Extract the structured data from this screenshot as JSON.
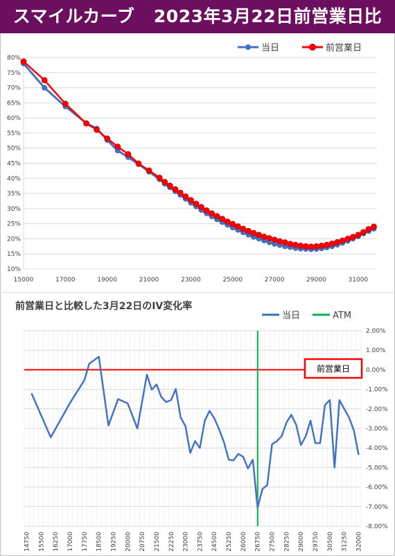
{
  "banner": {
    "title": "スマイルカーブ   2023年3月22日前営業日比"
  },
  "colors": {
    "banner": "#6b0f5e",
    "blue": "#4472c4",
    "red": "#ff0000",
    "green": "#00b050",
    "legend_blue": "#2e75b6"
  },
  "chart_data": [
    {
      "type": "line",
      "title": "",
      "legend_position": "top-right",
      "grid": true,
      "xlim": [
        15000,
        31900
      ],
      "ylim": [
        0.1,
        0.8
      ],
      "x_ticks": [
        15000,
        17000,
        19000,
        21000,
        23000,
        25000,
        27000,
        29000,
        31000
      ],
      "x_tick_labels": [
        "15000",
        "17000",
        "19000",
        "21000",
        "23000",
        "25000",
        "27000",
        "29000",
        "31000"
      ],
      "y_ticks": [
        0.1,
        0.15,
        0.2,
        0.25,
        0.3,
        0.35,
        0.4,
        0.45,
        0.5,
        0.55,
        0.6,
        0.65,
        0.7,
        0.75,
        0.8
      ],
      "y_tick_labels": [
        "10%",
        "15%",
        "20%",
        "25%",
        "30%",
        "35%",
        "40%",
        "45%",
        "50%",
        "55%",
        "60%",
        "65%",
        "70%",
        "75%",
        "80%"
      ],
      "series": [
        {
          "name": "当日",
          "color": "#4472c4",
          "x": [
            15000,
            16000,
            17000,
            18000,
            18500,
            19000,
            19500,
            20000,
            20500,
            21000,
            21500,
            21750,
            22000,
            22250,
            22500,
            22750,
            23000,
            23250,
            23500,
            23750,
            24000,
            24250,
            24500,
            24750,
            25000,
            25250,
            25500,
            25750,
            26000,
            26250,
            26500,
            26750,
            27000,
            27250,
            27500,
            27750,
            28000,
            28250,
            28500,
            28750,
            29000,
            29250,
            29500,
            29750,
            30000,
            30250,
            30500,
            30750,
            31000,
            31250,
            31500,
            31750
          ],
          "y": [
            0.78,
            0.7,
            0.638,
            0.583,
            0.565,
            0.527,
            0.492,
            0.47,
            0.447,
            0.422,
            0.397,
            0.382,
            0.37,
            0.357,
            0.345,
            0.332,
            0.319,
            0.307,
            0.295,
            0.284,
            0.274,
            0.264,
            0.255,
            0.246,
            0.237,
            0.229,
            0.221,
            0.213,
            0.206,
            0.2,
            0.194,
            0.188,
            0.183,
            0.179,
            0.175,
            0.172,
            0.169,
            0.167,
            0.166,
            0.165,
            0.166,
            0.168,
            0.171,
            0.175,
            0.18,
            0.186,
            0.193,
            0.2,
            0.208,
            0.217,
            0.225,
            0.233
          ]
        },
        {
          "name": "前営業日",
          "color": "#ff0000",
          "x": [
            15000,
            16000,
            17000,
            18000,
            18500,
            19000,
            19500,
            20000,
            20500,
            21000,
            21500,
            21750,
            22000,
            22250,
            22500,
            22750,
            23000,
            23250,
            23500,
            23750,
            24000,
            24250,
            24500,
            24750,
            25000,
            25250,
            25500,
            25750,
            26000,
            26250,
            26500,
            26750,
            27000,
            27250,
            27500,
            27750,
            28000,
            28250,
            28500,
            28750,
            29000,
            29250,
            29500,
            29750,
            30000,
            30250,
            30500,
            30750,
            31000,
            31250,
            31500,
            31750
          ],
          "y": [
            0.787,
            0.725,
            0.647,
            0.582,
            0.561,
            0.532,
            0.505,
            0.48,
            0.449,
            0.426,
            0.402,
            0.388,
            0.376,
            0.364,
            0.352,
            0.34,
            0.328,
            0.316,
            0.305,
            0.294,
            0.284,
            0.275,
            0.266,
            0.257,
            0.249,
            0.241,
            0.233,
            0.226,
            0.219,
            0.213,
            0.207,
            0.202,
            0.197,
            0.192,
            0.188,
            0.183,
            0.18,
            0.177,
            0.175,
            0.174,
            0.175,
            0.177,
            0.18,
            0.184,
            0.189,
            0.194,
            0.2,
            0.206,
            0.213,
            0.222,
            0.232,
            0.24
          ]
        }
      ]
    },
    {
      "type": "line",
      "title": "前営業日と比較した3月22日のIV変化率",
      "legend_position": "top-right",
      "grid": true,
      "ylim": [
        -0.08,
        0.02
      ],
      "y_ticks": [
        0.02,
        0.01,
        0.0,
        -0.01,
        -0.02,
        -0.03,
        -0.04,
        -0.05,
        -0.06,
        -0.07,
        -0.08
      ],
      "y_tick_labels": [
        "2.00%",
        "1.00%",
        "0.00%",
        "-1.00%",
        "-2.00%",
        "-3.00%",
        "-4.00%",
        "-5.00%",
        "-6.00%",
        "-7.00%",
        "-8.00%"
      ],
      "categories": [
        "14750",
        "15000",
        "15250",
        "15500",
        "15750",
        "16000",
        "16250",
        "16500",
        "16750",
        "17000",
        "17250",
        "17500",
        "17750",
        "18000",
        "18250",
        "18500",
        "18750",
        "19000",
        "19250",
        "19500",
        "19750",
        "20000",
        "20250",
        "20500",
        "20750",
        "21000",
        "21250",
        "21500",
        "21750",
        "22000",
        "22250",
        "22500",
        "22750",
        "23000",
        "23250",
        "23500",
        "23750",
        "24000",
        "24250",
        "24500",
        "24750",
        "25000",
        "25250",
        "25500",
        "25750",
        "26000",
        "26250",
        "26500",
        "26750",
        "27000",
        "27250",
        "27500",
        "27750",
        "28000",
        "28250",
        "28500",
        "28750",
        "29000",
        "29250",
        "29500",
        "29750",
        "30000",
        "30250",
        "30500",
        "30750",
        "31000",
        "31250",
        "31500",
        "31750",
        "32000"
      ],
      "x_tick_labels": [
        "14750",
        "15500",
        "16250",
        "17000",
        "17750",
        "18500",
        "19250",
        "20000",
        "20750",
        "21500",
        "22250",
        "23000",
        "23750",
        "24500",
        "25250",
        "26000",
        "26750",
        "27500",
        "28250",
        "29000",
        "29750",
        "30500",
        "31250",
        "32000"
      ],
      "atm": "26750",
      "reference_label": "前営業日",
      "series": [
        {
          "name": "当日",
          "color": "#4472c4",
          "x": [
            15000,
            16000,
            17000,
            17750,
            18000,
            18500,
            19000,
            19500,
            20000,
            20500,
            21000,
            21250,
            21500,
            21750,
            22000,
            22250,
            22500,
            22750,
            23000,
            23250,
            23500,
            23750,
            24000,
            24250,
            24500,
            24750,
            25000,
            25250,
            25500,
            25750,
            26000,
            26250,
            26500,
            26750,
            27000,
            27250,
            27500,
            27750,
            28000,
            28250,
            28500,
            28750,
            29000,
            29250,
            29500,
            29750,
            30000,
            30250,
            30500,
            30750,
            31000,
            31250,
            31500,
            31750,
            32000
          ],
          "y": [
            -0.012,
            -0.0345,
            -0.017,
            -0.0053,
            0.003,
            0.0067,
            -0.0285,
            -0.015,
            -0.0172,
            -0.03,
            -0.0025,
            -0.0102,
            -0.0075,
            -0.014,
            -0.0165,
            -0.0155,
            -0.0098,
            -0.0243,
            -0.0288,
            -0.0425,
            -0.0365,
            -0.04,
            -0.0262,
            -0.021,
            -0.0248,
            -0.0305,
            -0.037,
            -0.046,
            -0.0463,
            -0.043,
            -0.0445,
            -0.0505,
            -0.046,
            -0.0705,
            -0.061,
            -0.059,
            -0.038,
            -0.0365,
            -0.034,
            -0.027,
            -0.023,
            -0.028,
            -0.0385,
            -0.034,
            -0.026,
            -0.0375,
            -0.0375,
            -0.018,
            -0.0155,
            -0.05,
            -0.0155,
            -0.02,
            -0.0243,
            -0.031,
            -0.0435
          ]
        }
      ]
    }
  ],
  "legend2_atm": "ATM"
}
